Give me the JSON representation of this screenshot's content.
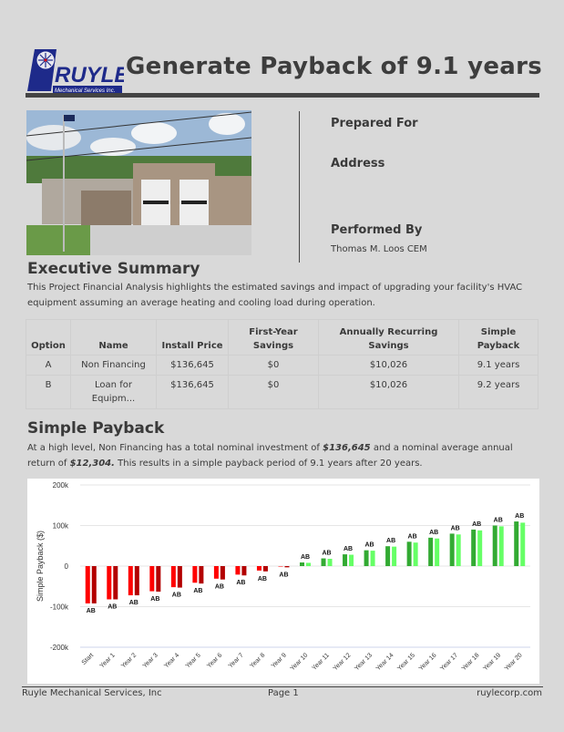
{
  "header": {
    "logo": {
      "text": "RUYLE",
      "subtext": "Mechanical Services Inc.",
      "icon": "snowflake-icon"
    },
    "title": "Generate Payback of 9.1 years"
  },
  "info": {
    "prepared_for_label": "Prepared For",
    "address_label": "Address",
    "performed_by_label": "Performed By",
    "performed_by_value": "Thomas M. Loos CEM"
  },
  "executive_summary": {
    "heading": "Executive Summary",
    "text": "This Project Financial Analysis highlights the estimated savings and impact of upgrading your facility's HVAC equipment assuming an average heating and cooling load during operation."
  },
  "summary_table": {
    "headers": [
      "Option",
      "Name",
      "Install Price",
      "First-Year Savings",
      "Annually Recurring Savings",
      "Simple Payback"
    ],
    "rows": [
      [
        "A",
        "Non Financing",
        "$136,645",
        "$0",
        "$10,026",
        "9.1 years"
      ],
      [
        "B",
        "Loan for Equipm...",
        "$136,645",
        "$0",
        "$10,026",
        "9.2 years"
      ]
    ]
  },
  "simple_payback": {
    "heading": "Simple Payback",
    "text_1": "At a high level, Non Financing has a total nominal investment of ",
    "investment": "$136,645",
    "text_2": " and a nominal average annual return of ",
    "annual_return": "$12,304.",
    "text_3": " This results in a simple payback period of 9.1 years after 20 years."
  },
  "chart_data": {
    "type": "bar",
    "title": "",
    "xlabel": "",
    "ylabel": "Simple Payback ($)",
    "ylim": [
      -200000,
      200000
    ],
    "yticks": [
      "200k",
      "100k",
      "0",
      "-100k",
      "-200k"
    ],
    "grid": true,
    "categories": [
      "Start",
      "Year 1",
      "Year 2",
      "Year 3",
      "Year 4",
      "Year 5",
      "Year 6",
      "Year 7",
      "Year 8",
      "Year 9",
      "Year 10",
      "Year 11",
      "Year 12",
      "Year 13",
      "Year 14",
      "Year 15",
      "Year 16",
      "Year 17",
      "Year 18",
      "Year 19",
      "Year 20"
    ],
    "series": [
      {
        "name": "A",
        "values": [
          -92000,
          -82000,
          -72000,
          -62000,
          -52000,
          -41000,
          -31000,
          -21000,
          -11000,
          -1000,
          9000,
          19000,
          29000,
          39000,
          49000,
          60000,
          70000,
          80000,
          90000,
          100000,
          110000
        ]
      },
      {
        "name": "B",
        "values": [
          -92000,
          -82000,
          -72000,
          -63000,
          -53000,
          -43000,
          -33000,
          -23000,
          -13000,
          -3000,
          8000,
          18000,
          28000,
          38000,
          48000,
          58000,
          68000,
          78000,
          88000,
          98000,
          107000
        ]
      }
    ],
    "bar_labels": [
      "A",
      "B"
    ],
    "colors": {
      "neg_a": "#ff0000",
      "neg_b": "#b30000",
      "pos_a": "#33aa33",
      "pos_b": "#66ff66"
    }
  },
  "footer": {
    "company": "Ruyle Mechanical Services, Inc",
    "page": "Page 1",
    "website": "ruylecorp.com"
  }
}
